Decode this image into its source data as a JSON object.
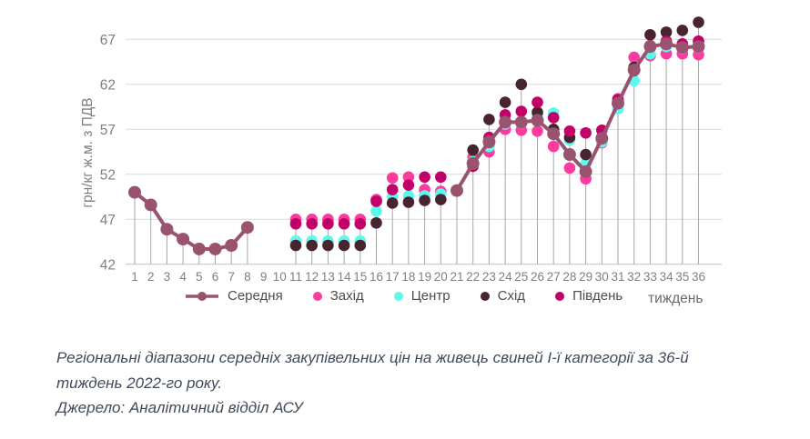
{
  "chart_data": {
    "type": "scatter",
    "title": "",
    "ylabel": "грн/кг ж.м. з ПДВ",
    "xlabel": "тиждень",
    "x": [
      1,
      2,
      3,
      4,
      5,
      6,
      7,
      8,
      9,
      10,
      11,
      12,
      13,
      14,
      15,
      16,
      17,
      18,
      19,
      20,
      21,
      22,
      23,
      24,
      25,
      26,
      27,
      28,
      29,
      30,
      31,
      32,
      33,
      34,
      35,
      36
    ],
    "y_ticks": [
      42,
      47,
      52,
      57,
      62,
      67
    ],
    "ylim": [
      42,
      69.5
    ],
    "grid": true,
    "drop_lines": true,
    "legend_position": "bottom",
    "series": [
      {
        "name": "Середня",
        "style": "line+marker",
        "color": "#9a536f",
        "values": [
          50.0,
          48.6,
          45.9,
          44.8,
          43.7,
          43.7,
          44.1,
          46.1,
          null,
          null,
          null,
          null,
          null,
          null,
          null,
          null,
          null,
          null,
          null,
          null,
          50.2,
          53.2,
          55.6,
          57.8,
          57.8,
          58.0,
          56.5,
          54.2,
          52.3,
          56.0,
          59.9,
          63.6,
          66.2,
          66.5,
          66.1,
          66.2
        ]
      },
      {
        "name": "Захід",
        "style": "marker",
        "color": "#fb3b9e",
        "values": [
          null,
          null,
          null,
          null,
          null,
          null,
          null,
          null,
          null,
          null,
          47.0,
          47.0,
          47.0,
          47.0,
          47.0,
          49.2,
          51.6,
          51.7,
          50.3,
          50.1,
          null,
          53.9,
          54.5,
          57.0,
          56.9,
          56.8,
          55.1,
          52.7,
          51.5,
          55.5,
          60.4,
          65.0,
          65.2,
          65.4,
          65.4,
          65.3
        ]
      },
      {
        "name": "Центр",
        "style": "marker",
        "color": "#5bfaec",
        "values": [
          null,
          null,
          null,
          null,
          null,
          null,
          null,
          null,
          null,
          null,
          44.6,
          44.6,
          44.6,
          44.6,
          44.6,
          47.9,
          49.5,
          49.6,
          49.6,
          49.8,
          null,
          53.4,
          55.1,
          57.6,
          57.7,
          58.6,
          58.8,
          55.8,
          53.2,
          55.6,
          59.3,
          62.4,
          65.4,
          66.2,
          66.0,
          66.1
        ]
      },
      {
        "name": "Схід",
        "style": "marker",
        "color": "#47242f",
        "values": [
          null,
          null,
          null,
          null,
          null,
          null,
          null,
          null,
          null,
          null,
          44.1,
          44.1,
          44.1,
          44.1,
          44.1,
          46.6,
          48.8,
          48.9,
          49.1,
          49.2,
          null,
          54.7,
          58.1,
          60.0,
          62.0,
          58.9,
          57.0,
          56.1,
          54.2,
          56.1,
          60.2,
          63.9,
          67.5,
          67.8,
          68.0,
          68.9
        ]
      },
      {
        "name": "Південь",
        "style": "marker",
        "color": "#c20067",
        "values": [
          null,
          null,
          null,
          null,
          null,
          null,
          null,
          null,
          null,
          null,
          46.5,
          46.5,
          46.5,
          46.5,
          46.5,
          49.0,
          50.3,
          50.8,
          51.7,
          51.7,
          null,
          52.9,
          56.1,
          58.6,
          59.0,
          60.0,
          58.3,
          56.8,
          56.6,
          56.9,
          60.3,
          63.5,
          66.3,
          66.8,
          66.5,
          66.8
        ]
      }
    ]
  },
  "caption": {
    "text": "Регіональні діапазони середніх закупівельних цін на живець свиней І-ї категорії за 36-й тиждень 2022-го року.",
    "source": "Джерело: Аналітичний відділ АСУ"
  },
  "colors": {
    "grid": "#d9d9d9",
    "axis": "#bfbfbf",
    "drop_line": "#a6a6a6",
    "tick_label": "#7f7f7f",
    "axis_title": "#7f7f7f",
    "legend_label": "#4d4d4d",
    "caption": "#3e4a59"
  }
}
